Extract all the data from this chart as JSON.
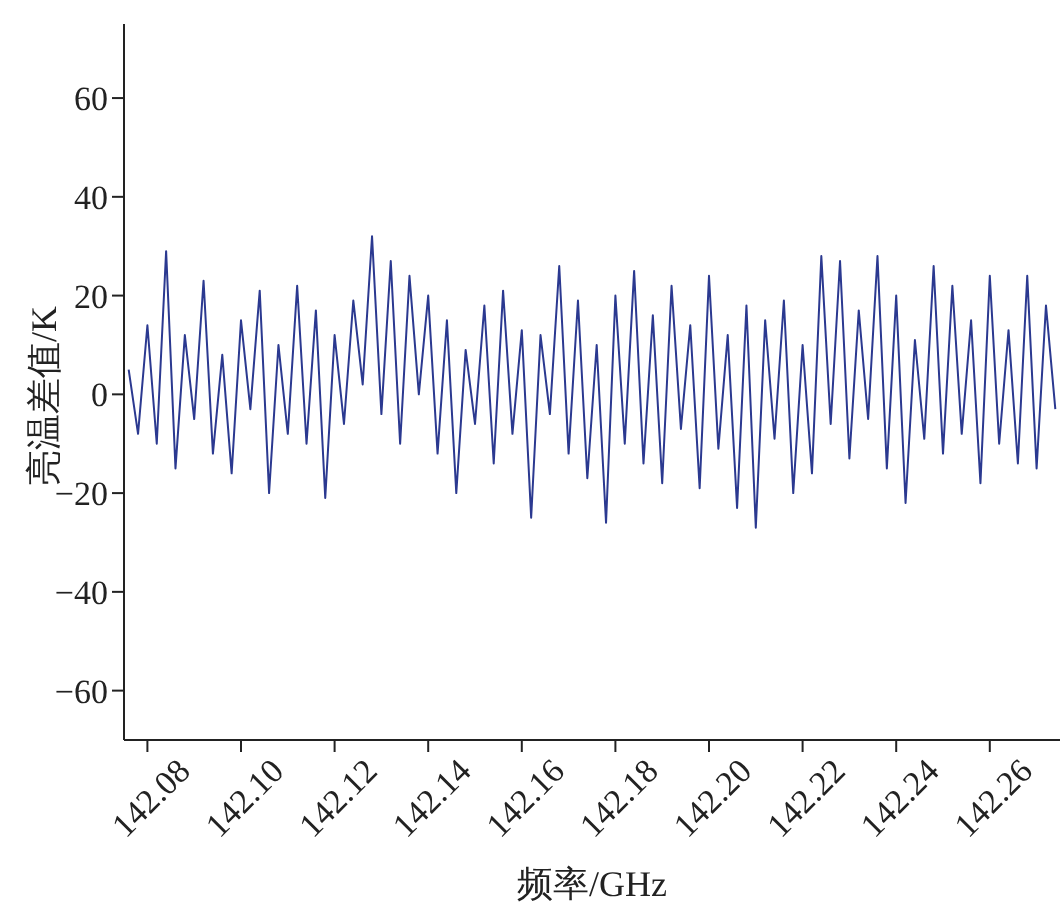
{
  "chart_data": {
    "type": "line",
    "xlabel": "频率/GHz",
    "ylabel": "亮温差值/K",
    "x": [
      142.076,
      142.078,
      142.08,
      142.082,
      142.084,
      142.086,
      142.088,
      142.09,
      142.092,
      142.094,
      142.096,
      142.098,
      142.1,
      142.102,
      142.104,
      142.106,
      142.108,
      142.11,
      142.112,
      142.114,
      142.116,
      142.118,
      142.12,
      142.122,
      142.124,
      142.126,
      142.128,
      142.13,
      142.132,
      142.134,
      142.136,
      142.138,
      142.14,
      142.142,
      142.144,
      142.146,
      142.148,
      142.15,
      142.152,
      142.154,
      142.156,
      142.158,
      142.16,
      142.162,
      142.164,
      142.166,
      142.168,
      142.17,
      142.172,
      142.174,
      142.176,
      142.178,
      142.18,
      142.182,
      142.184,
      142.186,
      142.188,
      142.19,
      142.192,
      142.194,
      142.196,
      142.198,
      142.2,
      142.202,
      142.204,
      142.206,
      142.208,
      142.21,
      142.212,
      142.214,
      142.216,
      142.218,
      142.22,
      142.222,
      142.224,
      142.226,
      142.228,
      142.23,
      142.232,
      142.234,
      142.236,
      142.238,
      142.24,
      142.242,
      142.244,
      142.246,
      142.248,
      142.25,
      142.252,
      142.254,
      142.256,
      142.258,
      142.26,
      142.262,
      142.264,
      142.266,
      142.268,
      142.27,
      142.272,
      142.274
    ],
    "series": [
      {
        "color": "#2b3990",
        "values": [
          5,
          -8,
          14,
          -10,
          29,
          -15,
          12,
          -5,
          23,
          -12,
          8,
          -16,
          15,
          -3,
          21,
          -20,
          10,
          -8,
          22,
          -10,
          17,
          -21,
          12,
          -6,
          19,
          2,
          32,
          -4,
          27,
          -10,
          24,
          0,
          20,
          -12,
          15,
          -20,
          9,
          -6,
          18,
          -14,
          21,
          -8,
          13,
          -25,
          12,
          -4,
          26,
          -12,
          19,
          -17,
          10,
          -26,
          20,
          -10,
          25,
          -14,
          16,
          -18,
          22,
          -7,
          14,
          -19,
          24,
          -11,
          12,
          -23,
          18,
          -27,
          15,
          -9,
          19,
          -20,
          10,
          -16,
          28,
          -6,
          27,
          -13,
          17,
          -5,
          28,
          -15,
          20,
          -22,
          11,
          -9,
          26,
          -12,
          22,
          -8,
          15,
          -18,
          24,
          -10,
          13,
          -14,
          24,
          -15,
          18,
          -3
        ]
      }
    ],
    "xlim": [
      142.075,
      142.275
    ],
    "xticks": [
      142.08,
      {
        "value": 142.1,
        "label": "142.10"
      },
      142.12,
      142.14,
      142.16,
      142.18,
      {
        "value": 142.2,
        "label": "142.20"
      },
      142.22,
      142.24,
      142.26
    ],
    "ylim": [
      -70,
      75
    ],
    "yticks": [
      -60,
      -40,
      -20,
      0,
      20,
      40,
      60
    ],
    "grid": false,
    "legend": false,
    "marker": "none",
    "line_style": "solid"
  }
}
